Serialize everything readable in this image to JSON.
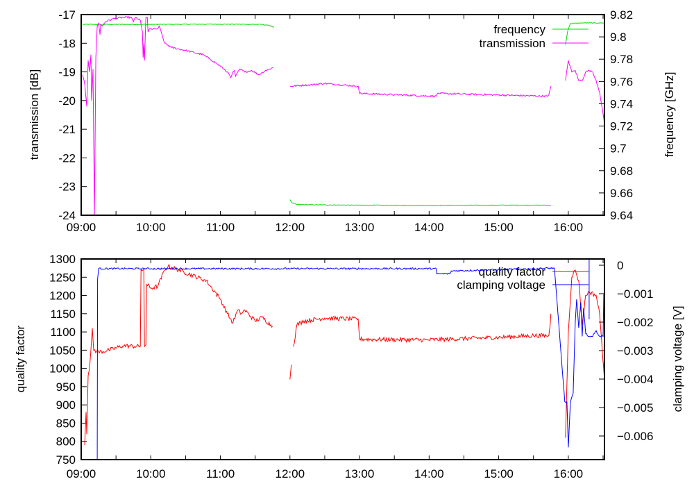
{
  "chart_data": [
    {
      "type": "line",
      "x_ticks": [
        "09:00",
        "10:00",
        "11:00",
        "12:00",
        "13:00",
        "14:00",
        "15:00",
        "16:00"
      ],
      "xlim_hours": [
        9.0,
        16.52
      ],
      "ylabel": "transmission [dB]",
      "y2label": "frequency [GHz]",
      "ylim": [
        -24,
        -17
      ],
      "y2lim": [
        9.64,
        9.82
      ],
      "y_ticks": [
        "-17",
        "-18",
        "-19",
        "-20",
        "-21",
        "-22",
        "-23",
        "-24"
      ],
      "y2_ticks": [
        "9.82",
        "9.8",
        "9.78",
        "9.76",
        "9.74",
        "9.72",
        "9.7",
        "9.68",
        "9.66",
        "9.64"
      ],
      "y2_tick_values": [
        9.82,
        9.8,
        9.78,
        9.76,
        9.74,
        9.72,
        9.7,
        9.68,
        9.66,
        9.64
      ],
      "y_tick_values": [
        -17,
        -18,
        -19,
        -20,
        -21,
        -22,
        -23,
        -24
      ],
      "legend": "top-right",
      "series": [
        {
          "name": "frequency",
          "axis": "y2",
          "color": "#00dd00",
          "noise": 0.0003,
          "segments": [
            [
              [
                9.02,
                9.8112
              ],
              [
                9.3,
                9.8112
              ],
              [
                10.0,
                9.8112
              ],
              [
                11.0,
                9.8114
              ],
              [
                11.6,
                9.8112
              ],
              [
                11.72,
                9.81
              ],
              [
                11.77,
                9.8085
              ]
            ],
            [
              [
                12.0,
                9.654
              ],
              [
                12.03,
                9.651
              ],
              [
                12.1,
                9.6495
              ],
              [
                13.0,
                9.649
              ],
              [
                14.0,
                9.6488
              ],
              [
                15.0,
                9.649
              ],
              [
                15.75,
                9.649
              ]
            ],
            [
              [
                15.96,
                9.793
              ],
              [
                15.99,
                9.805
              ],
              [
                16.03,
                9.812
              ],
              [
                16.2,
                9.8125
              ],
              [
                16.52,
                9.8125
              ]
            ]
          ]
        },
        {
          "name": "transmission",
          "axis": "y",
          "color": "#ff00ff",
          "noise": 0.03,
          "segments": [
            [
              [
                9.02,
                -19.1
              ],
              [
                9.05,
                -19.4
              ],
              [
                9.08,
                -20.2
              ],
              [
                9.1,
                -18.6
              ],
              [
                9.12,
                -19.0
              ],
              [
                9.14,
                -18.4
              ],
              [
                9.15,
                -20.0
              ],
              [
                9.17,
                -18.9
              ],
              [
                9.19,
                -24.0
              ],
              [
                9.21,
                -18.5
              ],
              [
                9.23,
                -17.4
              ],
              [
                9.25,
                -17.3
              ],
              [
                9.27,
                -17.7
              ],
              [
                9.28,
                -17.35
              ],
              [
                9.3,
                -17.4
              ],
              [
                9.35,
                -17.25
              ],
              [
                9.45,
                -17.15
              ],
              [
                9.6,
                -17.1
              ],
              [
                9.72,
                -17.1
              ],
              [
                9.75,
                -17.25
              ],
              [
                9.78,
                -17.1
              ],
              [
                9.85,
                -17.2
              ],
              [
                9.88,
                -17.6
              ],
              [
                9.89,
                -18.5
              ],
              [
                9.9,
                -18.0
              ],
              [
                9.91,
                -18.6
              ],
              [
                9.93,
                -17.1
              ],
              [
                9.95,
                -17.1
              ],
              [
                9.96,
                -17.6
              ],
              [
                9.98,
                -17.5
              ],
              [
                10.1,
                -17.5
              ],
              [
                10.12,
                -17.4
              ],
              [
                10.2,
                -18.0
              ],
              [
                10.3,
                -18.15
              ],
              [
                10.5,
                -18.25
              ],
              [
                10.75,
                -18.4
              ],
              [
                10.85,
                -18.55
              ],
              [
                11.0,
                -18.8
              ],
              [
                11.1,
                -19.0
              ],
              [
                11.15,
                -19.2
              ],
              [
                11.18,
                -19.0
              ],
              [
                11.2,
                -18.95
              ],
              [
                11.22,
                -19.15
              ],
              [
                11.28,
                -18.9
              ],
              [
                11.35,
                -19.0
              ],
              [
                11.45,
                -18.95
              ],
              [
                11.55,
                -19.1
              ],
              [
                11.65,
                -18.95
              ],
              [
                11.76,
                -18.85
              ]
            ],
            [
              [
                12.0,
                -19.5
              ],
              [
                12.3,
                -19.45
              ],
              [
                12.5,
                -19.4
              ],
              [
                12.98,
                -19.5
              ],
              [
                13.0,
                -19.75
              ],
              [
                14.1,
                -19.85
              ],
              [
                14.12,
                -19.75
              ],
              [
                15.7,
                -19.85
              ],
              [
                15.72,
                -19.8
              ],
              [
                15.74,
                -19.6
              ],
              [
                15.75,
                -19.5
              ]
            ],
            [
              [
                15.96,
                -19.3
              ],
              [
                16.0,
                -18.6
              ],
              [
                16.05,
                -19.0
              ],
              [
                16.1,
                -18.95
              ],
              [
                16.15,
                -19.3
              ],
              [
                16.2,
                -19.3
              ],
              [
                16.25,
                -19.0
              ],
              [
                16.3,
                -18.95
              ],
              [
                16.35,
                -19.0
              ],
              [
                16.4,
                -19.3
              ],
              [
                16.45,
                -19.7
              ],
              [
                16.52,
                -20.8
              ]
            ]
          ]
        }
      ]
    },
    {
      "type": "line",
      "x_ticks": [
        "09:00",
        "10:00",
        "11:00",
        "12:00",
        "13:00",
        "14:00",
        "15:00",
        "16:00"
      ],
      "xlim_hours": [
        9.0,
        16.52
      ],
      "ylabel": "quality factor",
      "y2label": "clamping voltage [V]",
      "ylim": [
        750,
        1300
      ],
      "y2lim": [
        -0.00683,
        0.00022
      ],
      "y_ticks": [
        "1300",
        "1250",
        "1200",
        "1150",
        "1100",
        "1050",
        "1000",
        "950",
        "900",
        "850",
        "800",
        "750"
      ],
      "y_tick_values": [
        1300,
        1250,
        1200,
        1150,
        1100,
        1050,
        1000,
        950,
        900,
        850,
        800,
        750
      ],
      "y2_ticks": [
        "0",
        "−0.001",
        "−0.002",
        "−0.003",
        "−0.004",
        "−0.005",
        "−0.006"
      ],
      "y2_tick_values": [
        0,
        -0.001,
        -0.002,
        -0.003,
        -0.004,
        -0.005,
        -0.006
      ],
      "legend": "top-right",
      "series": [
        {
          "name": "quality factor",
          "axis": "y",
          "color": "#ff0000",
          "noise": 6,
          "segments": [
            [
              [
                9.05,
                790
              ],
              [
                9.07,
                880
              ],
              [
                9.08,
                820
              ],
              [
                9.1,
                980
              ],
              [
                9.12,
                1000
              ],
              [
                9.15,
                1080
              ],
              [
                9.16,
                1110
              ],
              [
                9.18,
                1050
              ],
              [
                9.25,
                1045
              ],
              [
                9.4,
                1050
              ],
              [
                9.6,
                1062
              ],
              [
                9.85,
                1060
              ],
              [
                9.86,
                1270
              ],
              [
                9.9,
                1270
              ],
              [
                9.91,
                1060
              ],
              [
                9.93,
                1065
              ],
              [
                9.94,
                1230
              ],
              [
                10.0,
                1220
              ],
              [
                10.1,
                1225
              ],
              [
                10.2,
                1270
              ],
              [
                10.25,
                1280
              ],
              [
                10.4,
                1270
              ],
              [
                10.8,
                1240
              ],
              [
                11.0,
                1190
              ],
              [
                11.1,
                1150
              ],
              [
                11.18,
                1125
              ],
              [
                11.25,
                1160
              ],
              [
                11.3,
                1150
              ],
              [
                11.35,
                1160
              ],
              [
                11.5,
                1130
              ],
              [
                11.6,
                1140
              ],
              [
                11.75,
                1115
              ]
            ],
            [
              [
                12.0,
                970
              ],
              [
                12.02,
                1010
              ]
            ],
            [
              [
                12.05,
                1060
              ],
              [
                12.1,
                1120
              ],
              [
                12.2,
                1130
              ],
              [
                12.5,
                1138
              ],
              [
                12.98,
                1135
              ],
              [
                13.0,
                1080
              ],
              [
                14.0,
                1078
              ],
              [
                15.0,
                1085
              ],
              [
                15.5,
                1090
              ],
              [
                15.72,
                1090
              ],
              [
                15.74,
                1120
              ],
              [
                15.75,
                1150
              ]
            ],
            [
              [
                15.96,
                810
              ],
              [
                16.0,
                1100
              ],
              [
                16.05,
                1250
              ],
              [
                16.1,
                1270
              ],
              [
                16.15,
                1240
              ],
              [
                16.2,
                1120
              ],
              [
                16.25,
                1200
              ],
              [
                16.3,
                1210
              ],
              [
                16.4,
                1200
              ],
              [
                16.45,
                1150
              ],
              [
                16.52,
                970
              ]
            ]
          ]
        },
        {
          "name": "clamping voltage",
          "axis": "y2",
          "color": "#0000ff",
          "noise": 3e-05,
          "segments": [
            [
              [
                9.23,
                -0.00683
              ],
              [
                9.235,
                -0.0005
              ],
              [
                9.25,
                -0.00012
              ],
              [
                10.0,
                -0.00012
              ],
              [
                11.0,
                -0.00012
              ],
              [
                12.0,
                -0.00012
              ],
              [
                14.1,
                -0.00012
              ],
              [
                14.11,
                -0.0003
              ],
              [
                14.3,
                -0.0003
              ],
              [
                14.32,
                -0.0002
              ],
              [
                15.8,
                -0.0001
              ],
              [
                15.95,
                -0.0048
              ],
              [
                15.98,
                -0.0048
              ],
              [
                16.0,
                -0.0064
              ],
              [
                16.03,
                -0.0048
              ],
              [
                16.07,
                -0.0045
              ],
              [
                16.1,
                -0.002
              ],
              [
                16.12,
                -0.0012
              ],
              [
                16.15,
                -0.0022
              ],
              [
                16.18,
                -0.0013
              ],
              [
                16.2,
                -0.0025
              ],
              [
                16.22,
                -0.0015
              ],
              [
                16.25,
                -0.0024
              ],
              [
                16.3,
                -0.0025
              ],
              [
                16.35,
                -0.0025
              ],
              [
                16.4,
                -0.0023
              ],
              [
                16.45,
                -0.0025
              ],
              [
                16.5,
                -0.0025
              ],
              [
                16.51,
                -0.001
              ]
            ],
            [
              [
                16.3,
                -0.0019
              ],
              [
                16.3,
                0.00022
              ]
            ]
          ]
        }
      ]
    }
  ]
}
